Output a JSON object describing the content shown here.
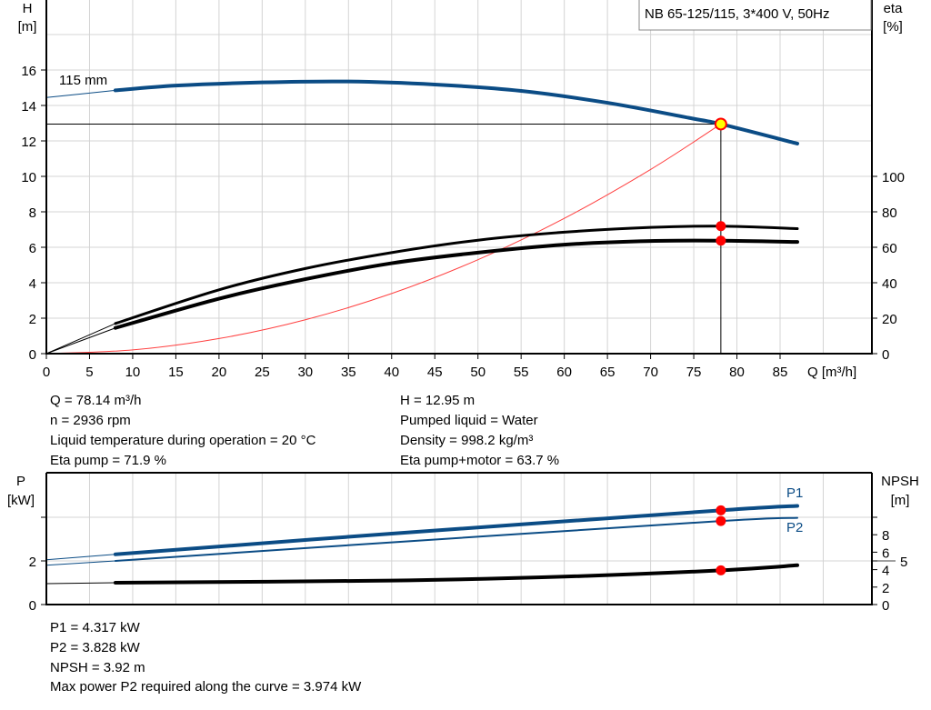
{
  "title": "NB 65-125/115, 3*400 V, 50Hz",
  "colors": {
    "head": "#0b4c85",
    "eta": "#000000",
    "system": "#ff4040",
    "power": "#0b4c85",
    "npsh": "#000000",
    "point": "#ff0000",
    "duty_point_fill": "#ffff00"
  },
  "chart_data": [
    {
      "type": "line",
      "xlabel": "Q [m³/h]",
      "ylabel_left": [
        "H",
        "[m]"
      ],
      "ylabel_right": [
        "eta",
        "[%]"
      ],
      "xlim": [
        0,
        90
      ],
      "ylim_left": [
        0,
        20
      ],
      "ylim_right": [
        0,
        102.5
      ],
      "x_ticks": [
        "0",
        "5",
        "10",
        "15",
        "20",
        "25",
        "30",
        "35",
        "40",
        "45",
        "50",
        "55",
        "60",
        "65",
        "70",
        "75",
        "80",
        "85"
      ],
      "y_left_ticks": [
        "0",
        "2",
        "4",
        "6",
        "8",
        "10",
        "12",
        "14",
        "16"
      ],
      "y_right_ticks": [
        "0",
        "20",
        "40",
        "60",
        "80",
        "100"
      ],
      "grid": true,
      "curve_label": "115 mm",
      "series": [
        {
          "key": "head",
          "axis": "left",
          "x": [
            0,
            8,
            15,
            25,
            35,
            45,
            55,
            65,
            75,
            78.14,
            87
          ],
          "y": [
            14.45,
            14.85,
            15.12,
            15.3,
            15.35,
            15.18,
            14.82,
            14.15,
            13.25,
            12.95,
            11.85
          ]
        },
        {
          "key": "eta_pump",
          "axis": "right",
          "x": [
            0,
            8,
            20,
            30,
            40,
            50,
            60,
            70,
            78.14,
            87
          ],
          "y": [
            0,
            17,
            36,
            48,
            57,
            64,
            68.5,
            71.2,
            71.9,
            70.5
          ]
        },
        {
          "key": "eta_pump_motor",
          "axis": "right",
          "x": [
            0,
            8,
            20,
            30,
            40,
            50,
            60,
            70,
            78.14,
            87
          ],
          "y": [
            0,
            14.5,
            31,
            42,
            51,
            57,
            61.5,
            63.5,
            63.7,
            63
          ]
        },
        {
          "key": "system",
          "axis": "left",
          "x": [
            0,
            10,
            20,
            30,
            40,
            50,
            60,
            70,
            78.14
          ],
          "y": [
            0,
            0.21,
            0.85,
            1.91,
            3.39,
            5.3,
            7.63,
            10.39,
            12.95
          ]
        }
      ],
      "duty_point": {
        "q": 78.14,
        "h": 12.95,
        "eta_pump": 71.9,
        "eta_pump_motor": 63.7
      }
    },
    {
      "type": "line",
      "ylabel_left": [
        "P",
        "[kW]"
      ],
      "ylabel_right": [
        "NPSH",
        "[m]"
      ],
      "xlim": [
        0,
        90
      ],
      "ylim_left": [
        0,
        6
      ],
      "ylim_right": [
        0,
        15
      ],
      "y_left_ticks": [
        "0",
        "2",
        ""
      ],
      "y_right_ticks": [
        "0",
        "2",
        "4",
        "5",
        "6",
        "8",
        ""
      ],
      "grid": true,
      "series": [
        {
          "key": "p1",
          "name": "P1",
          "axis": "left",
          "x": [
            0,
            8,
            40,
            78.14,
            87
          ],
          "y": [
            2.05,
            2.3,
            3.25,
            4.317,
            4.52
          ]
        },
        {
          "key": "p2",
          "name": "P2",
          "axis": "left",
          "x": [
            0,
            8,
            40,
            78.14,
            87
          ],
          "y": [
            1.8,
            2.0,
            2.85,
            3.828,
            3.974
          ]
        },
        {
          "key": "npsh",
          "axis": "right",
          "x": [
            0,
            8,
            40,
            60,
            78.14,
            87
          ],
          "y": [
            2.4,
            2.5,
            2.75,
            3.2,
            3.92,
            4.5
          ]
        }
      ]
    }
  ],
  "info1": {
    "left": [
      "Q = 78.14 m³/h",
      "n = 2936 rpm",
      "Liquid temperature during operation = 20 °C",
      "Eta pump = 71.9 %"
    ],
    "right": [
      "H = 12.95 m",
      "Pumped liquid = Water",
      "Density = 998.2 kg/m³",
      "Eta pump+motor = 63.7 %"
    ]
  },
  "info2": [
    "P1 = 4.317 kW",
    "P2 = 3.828 kW",
    "NPSH = 3.92 m",
    "Max power P2 required along the curve = 3.974 kW"
  ]
}
